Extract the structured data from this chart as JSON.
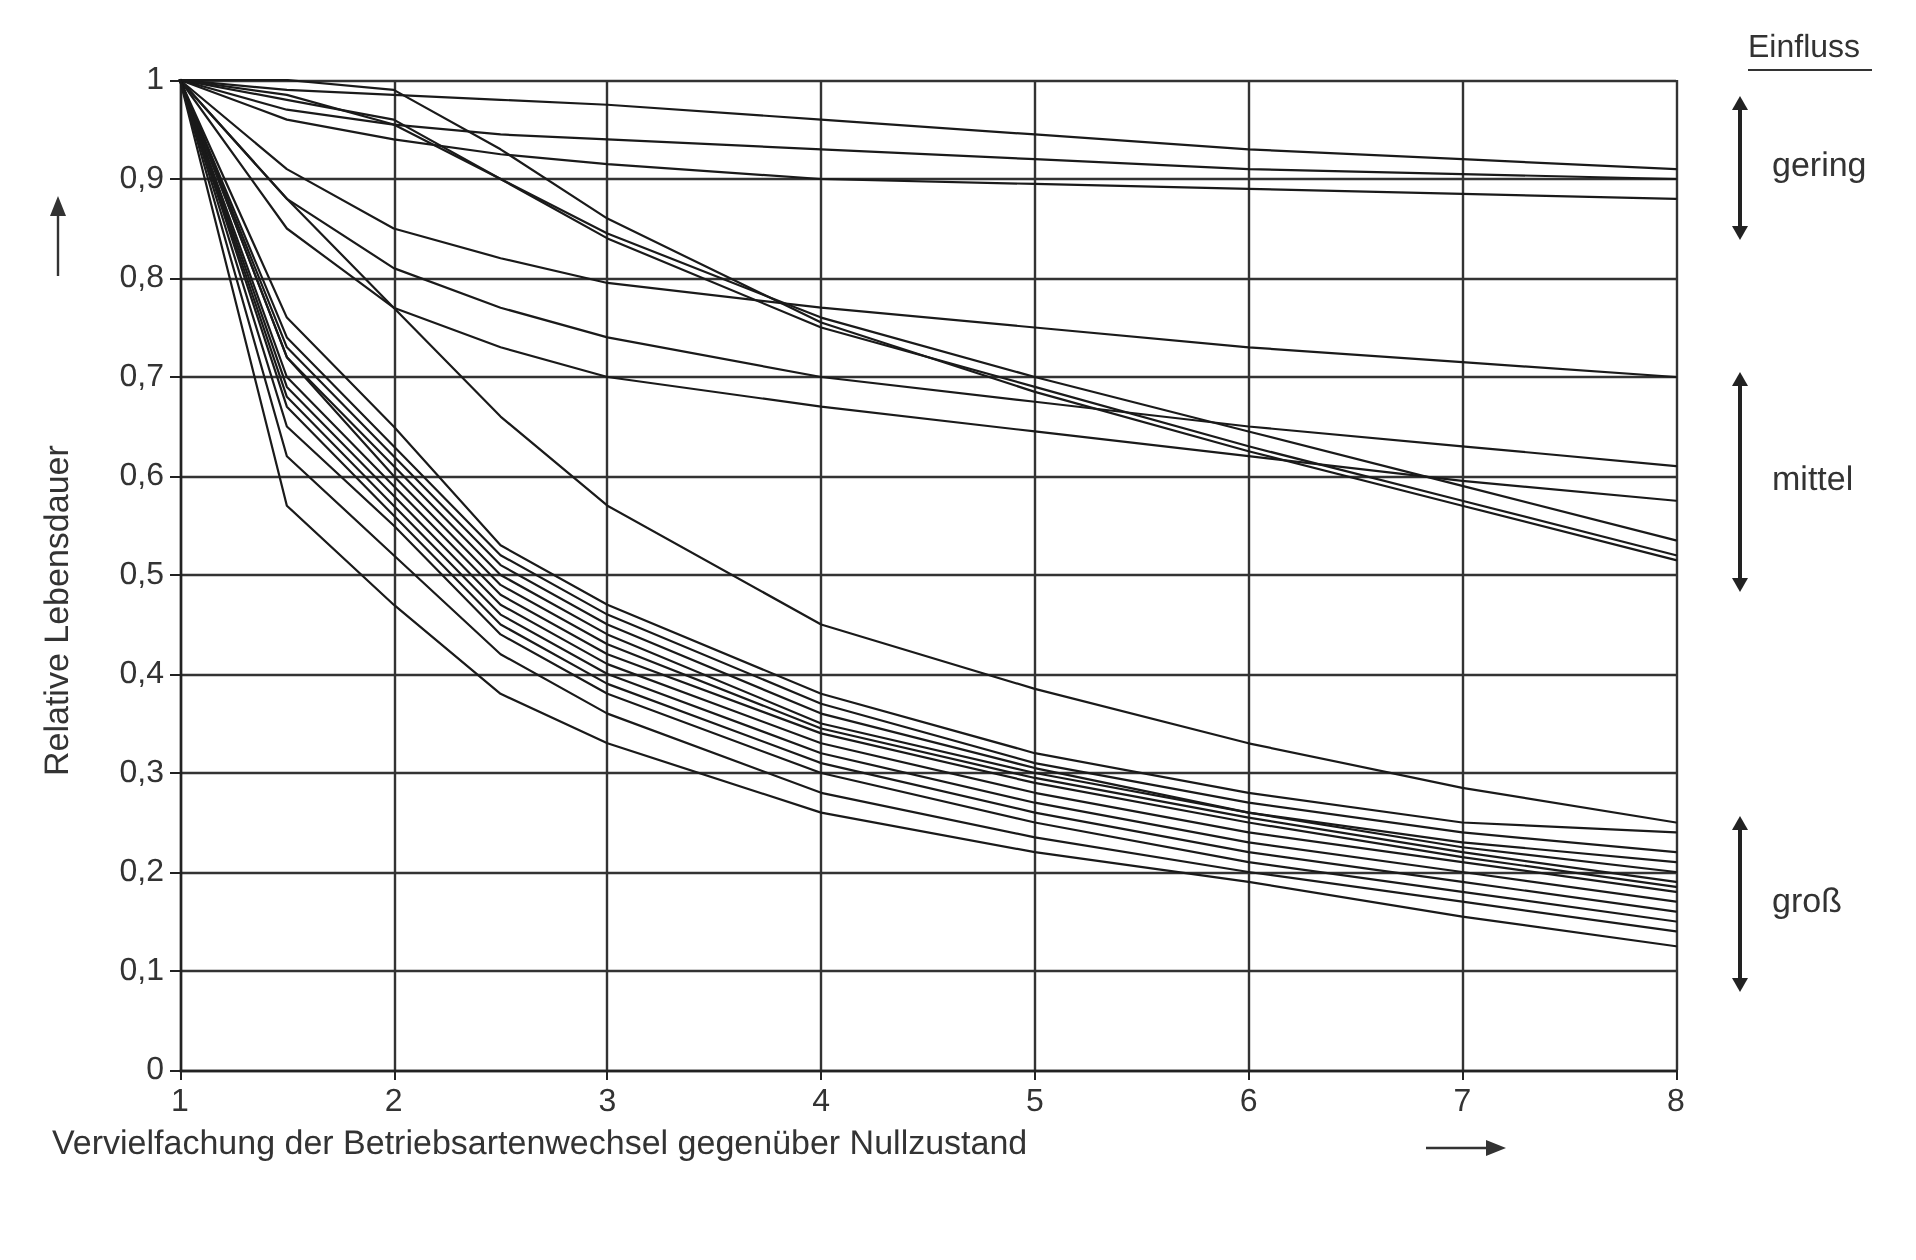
{
  "chart_data": {
    "type": "line",
    "xlabel": "Vervielfachung der Betriebsartenwechsel gegenüber Nullzustand",
    "ylabel": "Relative Lebensdauer",
    "x": [
      1,
      1.5,
      2,
      2.5,
      3,
      4,
      5,
      6,
      7,
      8
    ],
    "xlim": [
      1,
      8
    ],
    "xticks": [
      1,
      2,
      3,
      4,
      5,
      6,
      7,
      8
    ],
    "ylim": [
      0,
      1
    ],
    "yticks": [
      {
        "value": 0,
        "label": "0"
      },
      {
        "value": 0.1,
        "label": "0,1"
      },
      {
        "value": 0.2,
        "label": "0,2"
      },
      {
        "value": 0.3,
        "label": "0,3"
      },
      {
        "value": 0.4,
        "label": "0,4"
      },
      {
        "value": 0.5,
        "label": "0,5"
      },
      {
        "value": 0.6,
        "label": "0,6"
      },
      {
        "value": 0.7,
        "label": "0,7"
      },
      {
        "value": 0.8,
        "label": "0,8"
      },
      {
        "value": 0.9,
        "label": "0,9"
      },
      {
        "value": 1,
        "label": "1"
      }
    ],
    "grid": true,
    "marker": "none",
    "line_style": "solid",
    "annotations": [
      "Einfluss",
      "gering",
      "mittel",
      "groß"
    ],
    "series": [
      {
        "color": "#1a1a1a",
        "values": [
          1,
          0.99,
          0.985,
          0.98,
          0.975,
          0.96,
          0.945,
          0.93,
          0.92,
          0.91
        ]
      },
      {
        "color": "#1a1a1a",
        "values": [
          1,
          0.97,
          0.955,
          0.945,
          0.94,
          0.93,
          0.92,
          0.91,
          0.905,
          0.9
        ]
      },
      {
        "color": "#1a1a1a",
        "values": [
          1,
          0.96,
          0.94,
          0.925,
          0.915,
          0.9,
          0.895,
          0.89,
          0.885,
          0.88
        ]
      },
      {
        "color": "#1a1a1a",
        "values": [
          1,
          0.91,
          0.85,
          0.82,
          0.795,
          0.77,
          0.75,
          0.73,
          0.715,
          0.7
        ]
      },
      {
        "color": "#1a1a1a",
        "values": [
          1,
          0.88,
          0.81,
          0.77,
          0.74,
          0.7,
          0.675,
          0.65,
          0.63,
          0.61
        ]
      },
      {
        "color": "#1a1a1a",
        "values": [
          1,
          0.85,
          0.77,
          0.73,
          0.7,
          0.67,
          0.645,
          0.62,
          0.595,
          0.575
        ]
      },
      {
        "color": "#1a1a1a",
        "values": [
          1,
          0.98,
          0.96,
          0.9,
          0.84,
          0.75,
          0.69,
          0.63,
          0.575,
          0.52
        ]
      },
      {
        "color": "#1a1a1a",
        "values": [
          1,
          1,
          0.99,
          0.93,
          0.86,
          0.755,
          0.685,
          0.625,
          0.57,
          0.515
        ]
      },
      {
        "color": "#1a1a1a",
        "values": [
          1,
          0.985,
          0.955,
          0.9,
          0.845,
          0.76,
          0.7,
          0.645,
          0.59,
          0.535
        ]
      },
      {
        "color": "#1a1a1a",
        "values": [
          1,
          0.88,
          0.77,
          0.66,
          0.57,
          0.45,
          0.385,
          0.33,
          0.285,
          0.25
        ]
      },
      {
        "color": "#1a1a1a",
        "values": [
          1,
          0.76,
          0.65,
          0.53,
          0.47,
          0.38,
          0.32,
          0.28,
          0.25,
          0.24
        ]
      },
      {
        "color": "#1a1a1a",
        "values": [
          1,
          0.74,
          0.63,
          0.52,
          0.46,
          0.37,
          0.31,
          0.27,
          0.24,
          0.22
        ]
      },
      {
        "color": "#1a1a1a",
        "values": [
          1,
          0.73,
          0.62,
          0.51,
          0.45,
          0.36,
          0.305,
          0.26,
          0.23,
          0.21
        ]
      },
      {
        "color": "#1a1a1a",
        "values": [
          1,
          0.72,
          0.61,
          0.5,
          0.44,
          0.35,
          0.3,
          0.26,
          0.225,
          0.2
        ]
      },
      {
        "color": "#1a1a1a",
        "values": [
          1,
          0.72,
          0.6,
          0.49,
          0.43,
          0.345,
          0.295,
          0.255,
          0.22,
          0.19
        ]
      },
      {
        "color": "#1a1a1a",
        "values": [
          1,
          0.7,
          0.59,
          0.48,
          0.42,
          0.34,
          0.29,
          0.25,
          0.215,
          0.185
        ]
      },
      {
        "color": "#1a1a1a",
        "values": [
          1,
          0.69,
          0.58,
          0.47,
          0.41,
          0.33,
          0.28,
          0.24,
          0.21,
          0.18
        ]
      },
      {
        "color": "#1a1a1a",
        "values": [
          1,
          0.68,
          0.57,
          0.46,
          0.4,
          0.32,
          0.27,
          0.23,
          0.2,
          0.17
        ]
      },
      {
        "color": "#1a1a1a",
        "values": [
          1,
          0.67,
          0.56,
          0.45,
          0.39,
          0.31,
          0.26,
          0.22,
          0.19,
          0.16
        ]
      },
      {
        "color": "#1a1a1a",
        "values": [
          1,
          0.65,
          0.55,
          0.44,
          0.38,
          0.3,
          0.25,
          0.21,
          0.18,
          0.15
        ]
      },
      {
        "color": "#1a1a1a",
        "values": [
          1,
          0.62,
          0.52,
          0.42,
          0.36,
          0.28,
          0.235,
          0.2,
          0.17,
          0.14
        ]
      },
      {
        "color": "#1a1a1a",
        "values": [
          1,
          0.57,
          0.47,
          0.38,
          0.33,
          0.26,
          0.22,
          0.19,
          0.155,
          0.125
        ]
      }
    ]
  }
}
